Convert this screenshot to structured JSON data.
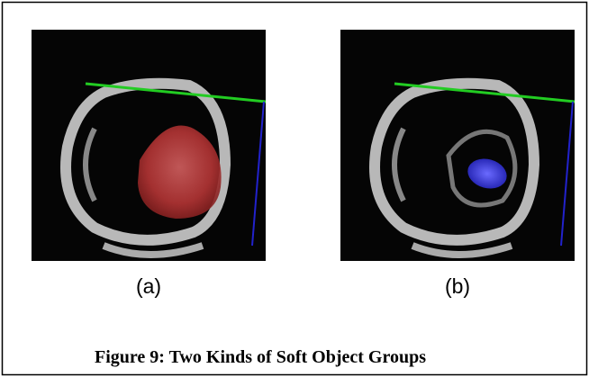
{
  "figure": {
    "panels": [
      {
        "label": "(a)"
      },
      {
        "label": "(b)"
      }
    ],
    "caption": "Figure 9: Two Kinds of Soft Object Groups"
  }
}
